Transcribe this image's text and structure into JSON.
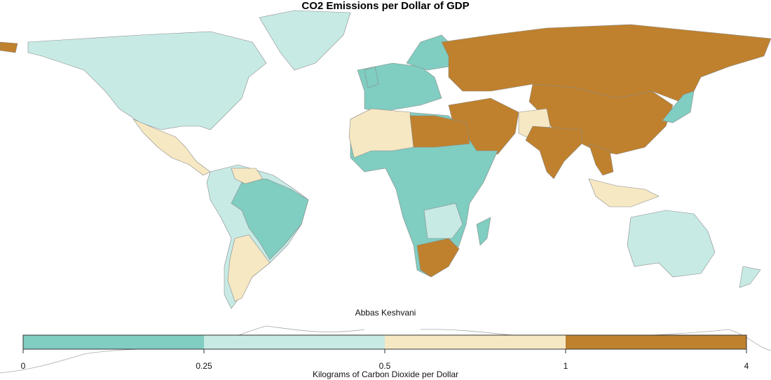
{
  "chart_data": {
    "type": "choropleth",
    "title": "CO2 Emissions per Dollar of GDP",
    "credit": "Abbas Keshvani",
    "legend": {
      "label": "Kilograms of Carbon Dioxide per Dollar",
      "breaks": [
        "0",
        "0.25",
        "0.5",
        "1",
        "4"
      ],
      "bins": [
        {
          "range": [
            0,
            0.25
          ],
          "color": "#80cdc1"
        },
        {
          "range": [
            0.25,
            0.5
          ],
          "color": "#c7eae5"
        },
        {
          "range": [
            0.5,
            1
          ],
          "color": "#f6e8c3"
        },
        {
          "range": [
            1,
            4
          ],
          "color": "#bf812d"
        }
      ],
      "placement": "bottom"
    }
  }
}
